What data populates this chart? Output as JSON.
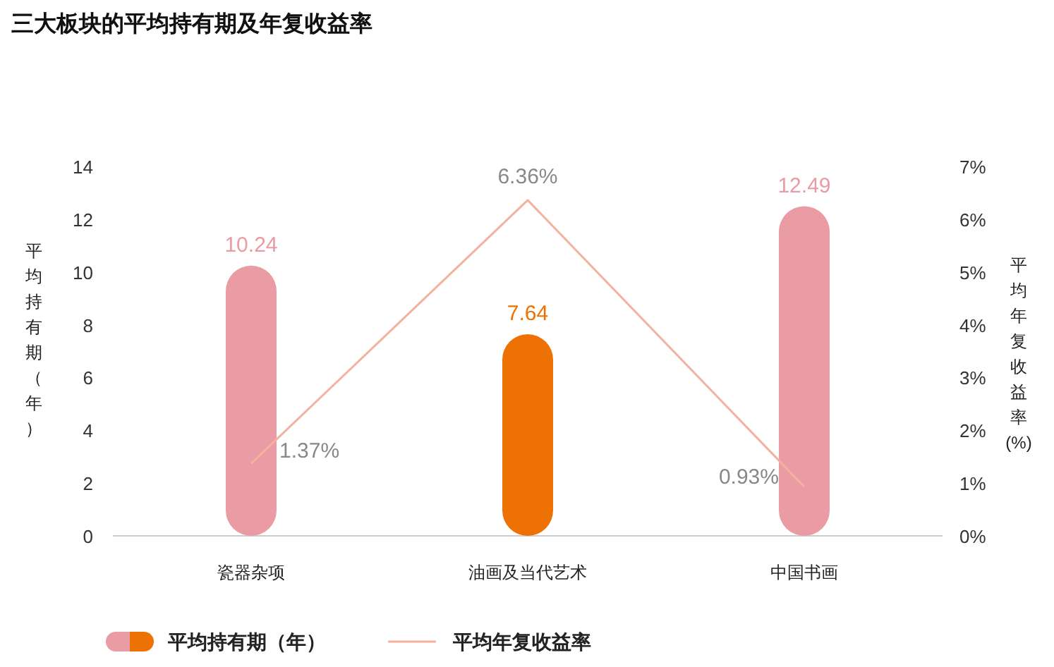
{
  "chart_data": {
    "type": "bar",
    "title": "三大板块的平均持有期及年复收益率",
    "categories": [
      "瓷器杂项",
      "油画及当代艺术",
      "中国书画"
    ],
    "series": [
      {
        "name": "平均持有期（年）",
        "colors": [
          "#e99ca3",
          "#ee7203",
          "#e99ca3"
        ],
        "values": [
          10.24,
          7.64,
          12.49
        ]
      },
      {
        "name": "平均年复收益率",
        "type": "line",
        "axis": "y2",
        "color": "#f2b29e",
        "values": [
          1.37,
          6.36,
          0.93
        ],
        "value_labels": [
          "1.37%",
          "6.36%",
          "0.93%"
        ]
      }
    ],
    "ylabel": "平均持有期（年）",
    "y2label": "平均年复收益率(%)",
    "ylim": [
      0,
      14
    ],
    "yticks": [
      0,
      2,
      4,
      6,
      8,
      10,
      12,
      14
    ],
    "y2lim": [
      0,
      7
    ],
    "y2ticks": [
      {
        "value": 0,
        "label": "0%"
      },
      {
        "value": 1,
        "label": "1%"
      },
      {
        "value": 2,
        "label": "2%"
      },
      {
        "value": 3,
        "label": "3%"
      },
      {
        "value": 4,
        "label": "4%"
      },
      {
        "value": 5,
        "label": "5%"
      },
      {
        "value": 6,
        "label": "6%"
      },
      {
        "value": 7,
        "label": "7%"
      }
    ],
    "data_labels": true,
    "legend": "bottom",
    "grid": false
  }
}
